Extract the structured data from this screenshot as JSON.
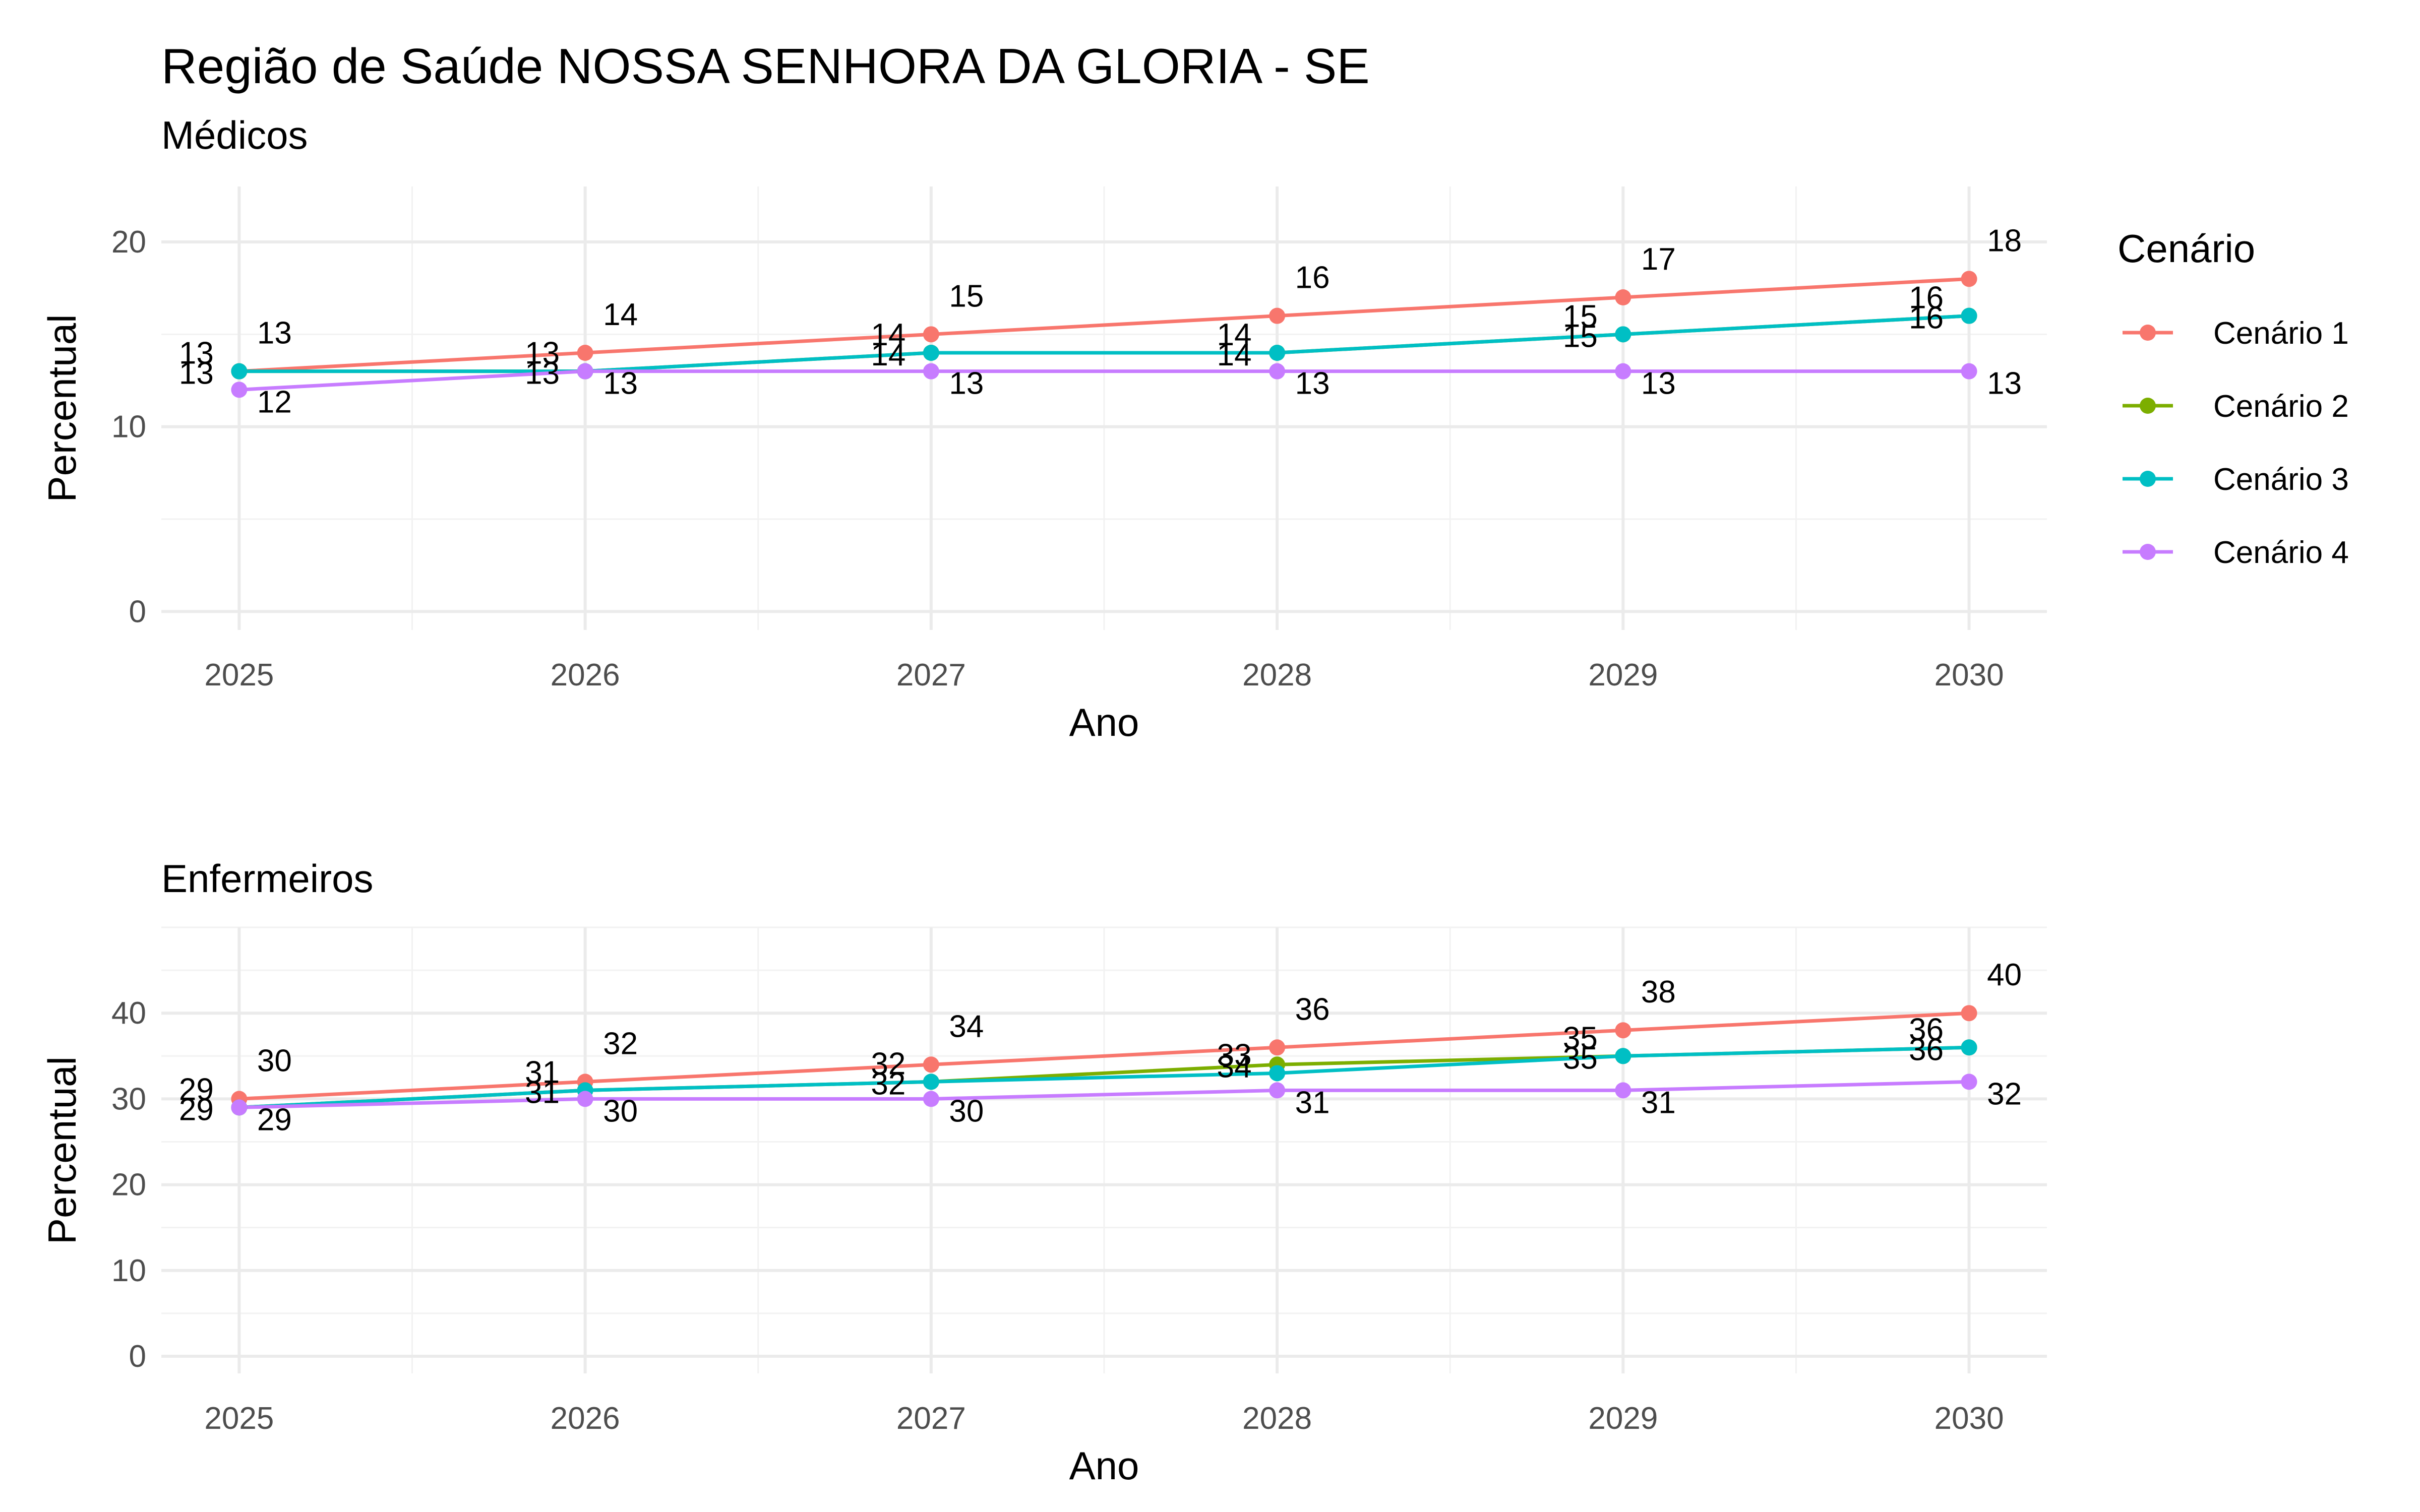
{
  "title": "Região de Saúde NOSSA SENHORA DA GLORIA - SE",
  "legend": {
    "title": "Cenário",
    "entries": [
      "Cenário 1",
      "Cenário 2",
      "Cenário 3",
      "Cenário 4"
    ],
    "colors": [
      "#F8766D",
      "#7CAE00",
      "#00BFC4",
      "#C77CFF"
    ],
    "placement": "right"
  },
  "chart_data": [
    {
      "type": "line",
      "subtitle": "Médicos",
      "xlabel": "Ano",
      "ylabel": "Percentual",
      "x": [
        2025,
        2026,
        2027,
        2028,
        2029,
        2030
      ],
      "x_ticks": [
        "2025",
        "2026",
        "2027",
        "2028",
        "2029",
        "2030"
      ],
      "y_ticks": [
        "0",
        "10",
        "20"
      ],
      "ylim": [
        -1,
        23
      ],
      "grid": true,
      "series": [
        {
          "name": "Cenário 1",
          "values": [
            13,
            14,
            15,
            16,
            17,
            18
          ],
          "labels": [
            "13",
            "14",
            "15",
            "16",
            "17",
            "18"
          ]
        },
        {
          "name": "Cenário 2",
          "values": [
            13,
            13,
            14,
            14,
            15,
            16
          ],
          "labels": [
            "13",
            "13",
            "14",
            "14",
            "15",
            "16"
          ]
        },
        {
          "name": "Cenário 3",
          "values": [
            13,
            13,
            14,
            14,
            15,
            16
          ],
          "labels": [
            "13",
            "13",
            "14",
            "14",
            "15",
            "16"
          ]
        },
        {
          "name": "Cenário 4",
          "values": [
            12,
            13,
            13,
            13,
            13,
            13
          ],
          "labels": [
            "12",
            "13",
            "13",
            "13",
            "13",
            "13"
          ]
        }
      ]
    },
    {
      "type": "line",
      "subtitle": "Enfermeiros",
      "xlabel": "Ano",
      "ylabel": "Percentual",
      "x": [
        2025,
        2026,
        2027,
        2028,
        2029,
        2030
      ],
      "x_ticks": [
        "2025",
        "2026",
        "2027",
        "2028",
        "2029",
        "2030"
      ],
      "y_ticks": [
        "0",
        "10",
        "20",
        "30",
        "40"
      ],
      "ylim": [
        -2,
        50
      ],
      "grid": true,
      "series": [
        {
          "name": "Cenário 1",
          "values": [
            30,
            32,
            34,
            36,
            38,
            40
          ],
          "labels": [
            "30",
            "32",
            "34",
            "36",
            "38",
            "40"
          ]
        },
        {
          "name": "Cenário 2",
          "values": [
            29,
            31,
            32,
            34,
            35,
            36
          ],
          "labels": [
            "29",
            "31",
            "32",
            "34",
            "35",
            "36"
          ]
        },
        {
          "name": "Cenário 3",
          "values": [
            29,
            31,
            32,
            33,
            35,
            36
          ],
          "labels": [
            "29",
            "31",
            "32",
            "33",
            "35",
            "36"
          ]
        },
        {
          "name": "Cenário 4",
          "values": [
            29,
            30,
            30,
            31,
            31,
            32
          ],
          "labels": [
            "29",
            "30",
            "30",
            "31",
            "31",
            "32"
          ]
        }
      ]
    }
  ]
}
